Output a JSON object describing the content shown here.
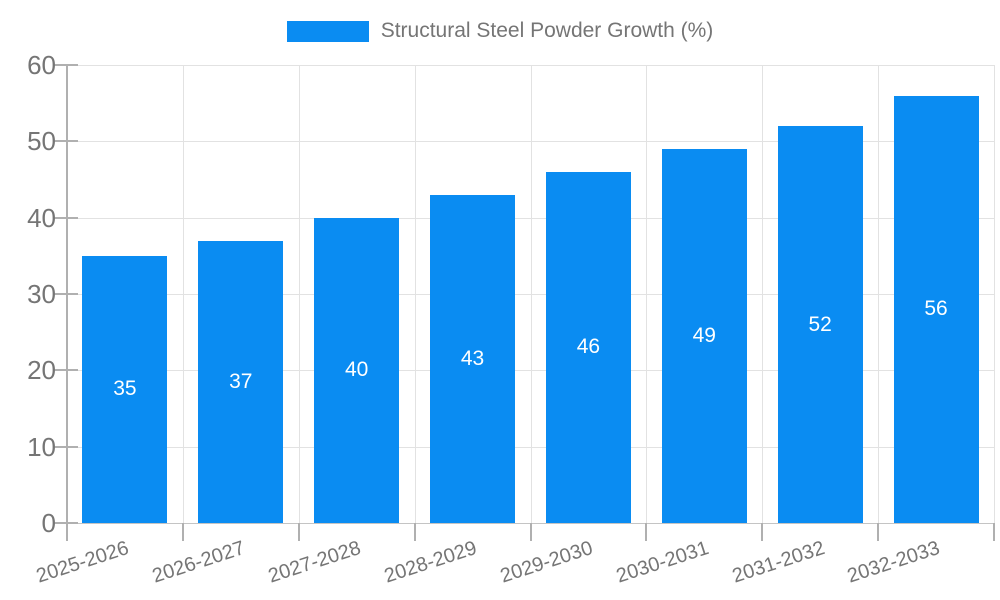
{
  "legend": {
    "label": "Structural Steel Powder Growth (%)"
  },
  "chart_data": {
    "type": "bar",
    "title": "",
    "legend_entries": [
      "Structural Steel Powder Growth (%)"
    ],
    "legend_position": "top-center",
    "categories": [
      "2025-2026",
      "2026-2027",
      "2027-2028",
      "2028-2029",
      "2029-2030",
      "2030-2031",
      "2031-2032",
      "2032-2033"
    ],
    "values": [
      35,
      37,
      40,
      43,
      46,
      49,
      52,
      56
    ],
    "bar_value_labels": [
      "35",
      "37",
      "40",
      "43",
      "46",
      "49",
      "52",
      "56"
    ],
    "xlabel": "",
    "ylabel": "",
    "ylim": [
      0,
      60
    ],
    "yticks": [
      0,
      10,
      20,
      30,
      40,
      50,
      60
    ],
    "grid": true,
    "x_label_rotation_deg": -18,
    "colors": {
      "bar": "#0a8cf2",
      "bar_label_text": "#ffffff",
      "axis_text": "#757575",
      "gridline": "#e2e2e2",
      "axis_line": "#b0b0b0",
      "background": "#ffffff"
    }
  }
}
